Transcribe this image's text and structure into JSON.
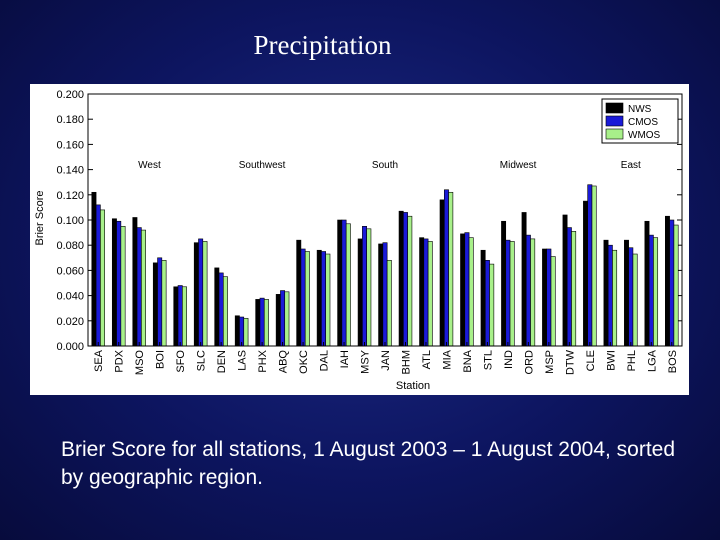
{
  "title": "Precipitation",
  "caption": "Brier Score for all stations, 1 August 2003 – 1 August 2004, sorted by geographic region.",
  "colors": {
    "NWS": "#000000",
    "CMOS": "#1a1ad8",
    "WMOS": "#a8f08a"
  },
  "chart_data": {
    "type": "bar",
    "xlabel": "Station",
    "ylabel": "Brier Score",
    "ylim": [
      0,
      0.2
    ],
    "yticks": [
      "0.000",
      "0.020",
      "0.040",
      "0.060",
      "0.080",
      "0.100",
      "0.120",
      "0.140",
      "0.160",
      "0.180",
      "0.200"
    ],
    "legend_position": "top-right",
    "grid": false,
    "categories": [
      "SEA",
      "PDX",
      "MSO",
      "BOI",
      "SFO",
      "SLC",
      "DEN",
      "LAS",
      "PHX",
      "ABQ",
      "OKC",
      "DAL",
      "IAH",
      "MSY",
      "JAN",
      "BHM",
      "ATL",
      "MIA",
      "BNA",
      "STL",
      "IND",
      "ORD",
      "MSP",
      "DTW",
      "CLE",
      "BWI",
      "PHL",
      "LGA",
      "BOS"
    ],
    "regions": [
      {
        "label": "West",
        "start": 0,
        "end": 5
      },
      {
        "label": "Southwest",
        "start": 6,
        "end": 10
      },
      {
        "label": "South",
        "start": 11,
        "end": 17
      },
      {
        "label": "Midwest",
        "start": 18,
        "end": 23
      },
      {
        "label": "East",
        "start": 24,
        "end": 28
      }
    ],
    "series": [
      {
        "name": "NWS",
        "values": [
          0.122,
          0.101,
          0.102,
          0.066,
          0.047,
          0.082,
          0.062,
          0.024,
          0.037,
          0.041,
          0.084,
          0.076,
          0.1,
          0.085,
          0.081,
          0.107,
          0.086,
          0.116,
          0.089,
          0.076,
          0.099,
          0.106,
          0.077,
          0.104,
          0.115,
          0.084,
          0.084,
          0.099,
          0.103
        ]
      },
      {
        "name": "CMOS",
        "values": [
          0.112,
          0.099,
          0.094,
          0.07,
          0.048,
          0.085,
          0.058,
          0.023,
          0.038,
          0.044,
          0.077,
          0.075,
          0.1,
          0.095,
          0.082,
          0.106,
          0.085,
          0.124,
          0.09,
          0.068,
          0.084,
          0.088,
          0.077,
          0.094,
          0.128,
          0.08,
          0.078,
          0.088,
          0.1
        ]
      },
      {
        "name": "WMOS",
        "values": [
          0.108,
          0.095,
          0.092,
          0.068,
          0.047,
          0.083,
          0.055,
          0.022,
          0.037,
          0.043,
          0.075,
          0.073,
          0.097,
          0.093,
          0.068,
          0.103,
          0.083,
          0.122,
          0.086,
          0.065,
          0.083,
          0.085,
          0.071,
          0.091,
          0.127,
          0.076,
          0.073,
          0.086,
          0.096
        ]
      }
    ]
  }
}
